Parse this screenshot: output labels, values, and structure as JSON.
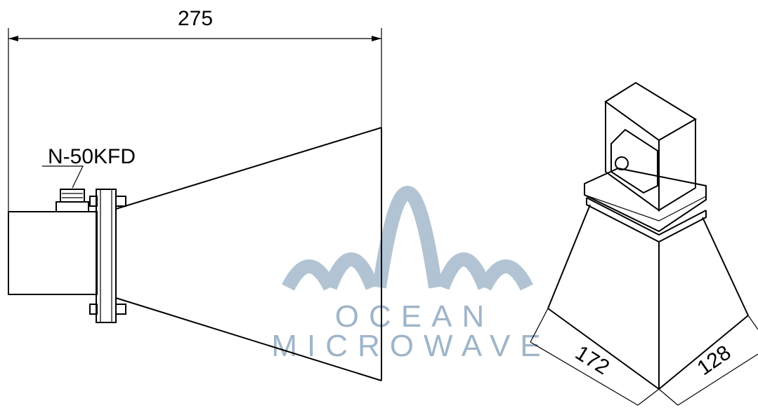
{
  "dimensions": {
    "length": "275",
    "width": "172",
    "height": "128"
  },
  "connector": {
    "label": "N-50KFD"
  },
  "watermark": {
    "line1": "OCEAN",
    "line2": "MICROWAVE"
  }
}
